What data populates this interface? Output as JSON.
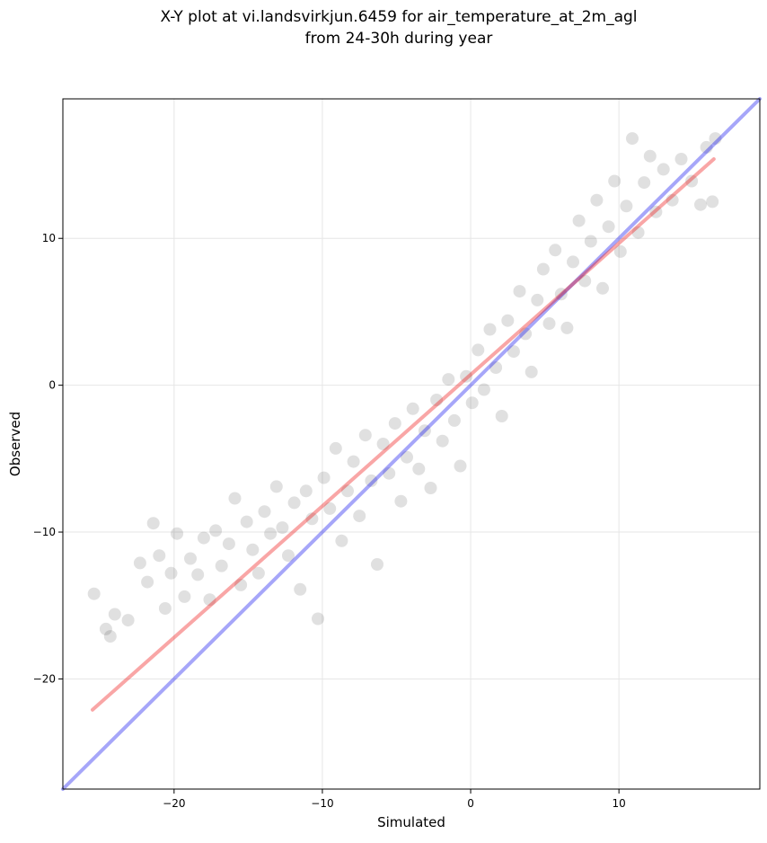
{
  "chart_data": {
    "type": "scatter",
    "title": "X-Y plot at vi.landsvirkjun.6459 for air_temperature_at_2m_agl",
    "subtitle": "from 24-30h during year",
    "xlabel": "Simulated",
    "ylabel": "Observed",
    "xlim": [
      -27.5,
      19.5
    ],
    "ylim": [
      -27.5,
      19.5
    ],
    "xticks": [
      {
        "value": -20,
        "label": "−20"
      },
      {
        "value": -10,
        "label": "−10"
      },
      {
        "value": 0,
        "label": "0"
      },
      {
        "value": 10,
        "label": "10"
      }
    ],
    "yticks": [
      {
        "value": -20,
        "label": "−20"
      },
      {
        "value": -10,
        "label": "−10"
      },
      {
        "value": 0,
        "label": "0"
      },
      {
        "value": 10,
        "label": "10"
      }
    ],
    "grid": true,
    "colors": {
      "points": "#000000",
      "identity_line": "#0000ee",
      "fit_line": "#ee0000"
    },
    "series": [
      {
        "role": "observations",
        "points": [
          [
            -25.4,
            -14.2
          ],
          [
            -24.6,
            -16.6
          ],
          [
            -24.3,
            -17.1
          ],
          [
            -24.0,
            -15.6
          ],
          [
            -23.1,
            -16.0
          ],
          [
            -22.3,
            -12.1
          ],
          [
            -21.8,
            -13.4
          ],
          [
            -21.4,
            -9.4
          ],
          [
            -21.0,
            -11.6
          ],
          [
            -20.6,
            -15.2
          ],
          [
            -20.2,
            -12.8
          ],
          [
            -19.8,
            -10.1
          ],
          [
            -19.3,
            -14.4
          ],
          [
            -18.9,
            -11.8
          ],
          [
            -18.4,
            -12.9
          ],
          [
            -18.0,
            -10.4
          ],
          [
            -17.6,
            -14.6
          ],
          [
            -17.2,
            -9.9
          ],
          [
            -16.8,
            -12.3
          ],
          [
            -16.3,
            -10.8
          ],
          [
            -15.9,
            -7.7
          ],
          [
            -15.5,
            -13.6
          ],
          [
            -15.1,
            -9.3
          ],
          [
            -14.7,
            -11.2
          ],
          [
            -14.3,
            -12.8
          ],
          [
            -13.9,
            -8.6
          ],
          [
            -13.5,
            -10.1
          ],
          [
            -13.1,
            -6.9
          ],
          [
            -12.7,
            -9.7
          ],
          [
            -12.3,
            -11.6
          ],
          [
            -11.9,
            -8.0
          ],
          [
            -11.5,
            -13.9
          ],
          [
            -11.1,
            -7.2
          ],
          [
            -10.7,
            -9.1
          ],
          [
            -10.3,
            -15.9
          ],
          [
            -9.9,
            -6.3
          ],
          [
            -9.5,
            -8.4
          ],
          [
            -9.1,
            -4.3
          ],
          [
            -8.7,
            -10.6
          ],
          [
            -8.3,
            -7.2
          ],
          [
            -7.9,
            -5.2
          ],
          [
            -7.5,
            -8.9
          ],
          [
            -7.1,
            -3.4
          ],
          [
            -6.7,
            -6.5
          ],
          [
            -6.3,
            -12.2
          ],
          [
            -5.9,
            -4.0
          ],
          [
            -5.5,
            -6.0
          ],
          [
            -5.1,
            -2.6
          ],
          [
            -4.7,
            -7.9
          ],
          [
            -4.3,
            -4.9
          ],
          [
            -3.9,
            -1.6
          ],
          [
            -3.5,
            -5.7
          ],
          [
            -3.1,
            -3.1
          ],
          [
            -2.7,
            -7.0
          ],
          [
            -2.3,
            -1.0
          ],
          [
            -1.9,
            -3.8
          ],
          [
            -1.5,
            0.4
          ],
          [
            -1.1,
            -2.4
          ],
          [
            -0.7,
            -5.5
          ],
          [
            -0.3,
            0.6
          ],
          [
            0.1,
            -1.2
          ],
          [
            0.5,
            2.4
          ],
          [
            0.9,
            -0.3
          ],
          [
            1.3,
            3.8
          ],
          [
            1.7,
            1.2
          ],
          [
            2.1,
            -2.1
          ],
          [
            2.5,
            4.4
          ],
          [
            2.9,
            2.3
          ],
          [
            3.3,
            6.4
          ],
          [
            3.7,
            3.5
          ],
          [
            4.1,
            0.9
          ],
          [
            4.5,
            5.8
          ],
          [
            4.9,
            7.9
          ],
          [
            5.3,
            4.2
          ],
          [
            5.7,
            9.2
          ],
          [
            6.1,
            6.2
          ],
          [
            6.5,
            3.9
          ],
          [
            6.9,
            8.4
          ],
          [
            7.3,
            11.2
          ],
          [
            7.7,
            7.1
          ],
          [
            8.1,
            9.8
          ],
          [
            8.5,
            12.6
          ],
          [
            8.9,
            6.6
          ],
          [
            9.3,
            10.8
          ],
          [
            9.7,
            13.9
          ],
          [
            10.1,
            9.1
          ],
          [
            10.5,
            12.2
          ],
          [
            10.9,
            16.8
          ],
          [
            11.3,
            10.4
          ],
          [
            11.7,
            13.8
          ],
          [
            12.1,
            15.6
          ],
          [
            12.5,
            11.8
          ],
          [
            13.0,
            14.7
          ],
          [
            13.6,
            12.6
          ],
          [
            14.2,
            15.4
          ],
          [
            14.9,
            13.9
          ],
          [
            15.5,
            12.3
          ],
          [
            16.3,
            12.5
          ],
          [
            16.5,
            16.8
          ],
          [
            15.9,
            16.2
          ]
        ]
      },
      {
        "role": "identity-line",
        "points": [
          [
            -27.5,
            -27.5
          ],
          [
            19.5,
            19.5
          ]
        ]
      },
      {
        "role": "fit-line",
        "points": [
          [
            -25.5,
            -22.1
          ],
          [
            16.4,
            15.4
          ]
        ]
      }
    ]
  }
}
